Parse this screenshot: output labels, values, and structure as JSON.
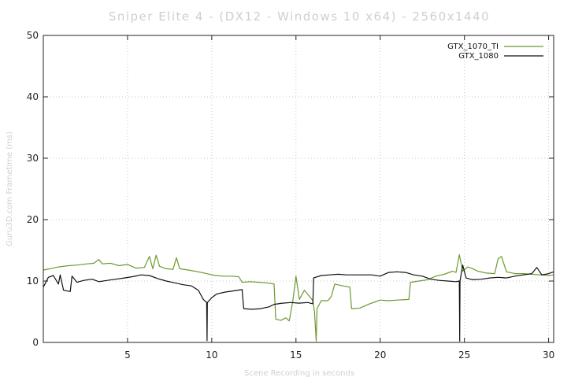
{
  "chart_data": {
    "type": "line",
    "title": "Sniper Elite 4 - (DX12 - Windows 10 x64) - 2560x1440",
    "xlabel": "Scene Recording in seconds",
    "ylabel": "Guru3D.com Frametime (ms)",
    "xlim": [
      0,
      30.3
    ],
    "ylim": [
      0,
      50
    ],
    "x_ticks": [
      5,
      10,
      15,
      20,
      25,
      30
    ],
    "y_ticks": [
      0,
      10,
      20,
      30,
      40,
      50
    ],
    "grid": true,
    "legend_position": "top-right",
    "series": [
      {
        "name": "GTX_1070_TI",
        "color": "#6b9a2e",
        "points": [
          [
            0,
            11.8
          ],
          [
            0.4,
            12.0
          ],
          [
            0.9,
            12.3
          ],
          [
            1.5,
            12.5
          ],
          [
            2.0,
            12.6
          ],
          [
            2.6,
            12.8
          ],
          [
            3.0,
            12.9
          ],
          [
            3.3,
            13.5
          ],
          [
            3.5,
            12.8
          ],
          [
            4.0,
            12.9
          ],
          [
            4.5,
            12.5
          ],
          [
            5.0,
            12.7
          ],
          [
            5.5,
            12.1
          ],
          [
            6.0,
            12.2
          ],
          [
            6.3,
            14.0
          ],
          [
            6.5,
            12.0
          ],
          [
            6.7,
            14.2
          ],
          [
            6.9,
            12.4
          ],
          [
            7.3,
            12.0
          ],
          [
            7.7,
            11.9
          ],
          [
            7.9,
            13.8
          ],
          [
            8.1,
            12.0
          ],
          [
            8.6,
            11.8
          ],
          [
            9.2,
            11.5
          ],
          [
            9.7,
            11.2
          ],
          [
            10.2,
            10.9
          ],
          [
            10.7,
            10.8
          ],
          [
            11.2,
            10.8
          ],
          [
            11.6,
            10.7
          ],
          [
            11.8,
            9.8
          ],
          [
            12.3,
            9.9
          ],
          [
            12.8,
            9.8
          ],
          [
            13.3,
            9.7
          ],
          [
            13.7,
            9.5
          ],
          [
            13.8,
            3.8
          ],
          [
            14.1,
            3.6
          ],
          [
            14.4,
            4.0
          ],
          [
            14.6,
            3.5
          ],
          [
            14.8,
            6.5
          ],
          [
            15.0,
            10.8
          ],
          [
            15.2,
            7.0
          ],
          [
            15.5,
            8.5
          ],
          [
            15.8,
            7.5
          ],
          [
            16.0,
            6.8
          ],
          [
            16.1,
            5.0
          ],
          [
            16.2,
            0.2
          ],
          [
            16.25,
            5.5
          ],
          [
            16.5,
            6.8
          ],
          [
            16.9,
            6.8
          ],
          [
            17.1,
            7.5
          ],
          [
            17.3,
            9.5
          ],
          [
            17.8,
            9.2
          ],
          [
            18.2,
            9.0
          ],
          [
            18.3,
            5.5
          ],
          [
            18.8,
            5.6
          ],
          [
            19.3,
            6.2
          ],
          [
            19.7,
            6.6
          ],
          [
            20.0,
            6.9
          ],
          [
            20.5,
            6.8
          ],
          [
            21.0,
            6.9
          ],
          [
            21.7,
            7.0
          ],
          [
            21.8,
            9.8
          ],
          [
            22.3,
            10.0
          ],
          [
            22.8,
            10.2
          ],
          [
            23.3,
            10.8
          ],
          [
            23.8,
            11.1
          ],
          [
            24.3,
            11.6
          ],
          [
            24.5,
            11.4
          ],
          [
            24.7,
            14.3
          ],
          [
            24.9,
            11.6
          ],
          [
            25.2,
            12.3
          ],
          [
            25.5,
            12.0
          ],
          [
            25.8,
            11.6
          ],
          [
            26.3,
            11.3
          ],
          [
            26.8,
            11.2
          ],
          [
            27.0,
            13.6
          ],
          [
            27.2,
            14.0
          ],
          [
            27.5,
            11.5
          ],
          [
            28.0,
            11.2
          ],
          [
            28.5,
            11.2
          ],
          [
            29.0,
            11.1
          ],
          [
            29.5,
            11.0
          ],
          [
            30.0,
            10.9
          ],
          [
            30.3,
            11.0
          ]
        ]
      },
      {
        "name": "GTX_1080",
        "color": "#111111",
        "points": [
          [
            0,
            9.0
          ],
          [
            0.3,
            10.6
          ],
          [
            0.6,
            10.9
          ],
          [
            0.9,
            9.5
          ],
          [
            1.0,
            11.0
          ],
          [
            1.2,
            8.5
          ],
          [
            1.6,
            8.3
          ],
          [
            1.7,
            10.8
          ],
          [
            2.0,
            9.8
          ],
          [
            2.4,
            10.1
          ],
          [
            2.9,
            10.3
          ],
          [
            3.3,
            9.9
          ],
          [
            3.8,
            10.1
          ],
          [
            4.3,
            10.3
          ],
          [
            4.8,
            10.5
          ],
          [
            5.3,
            10.7
          ],
          [
            5.8,
            11.0
          ],
          [
            6.3,
            10.9
          ],
          [
            6.8,
            10.4
          ],
          [
            7.3,
            10.0
          ],
          [
            7.8,
            9.7
          ],
          [
            8.3,
            9.4
          ],
          [
            8.8,
            9.2
          ],
          [
            9.2,
            8.5
          ],
          [
            9.5,
            7.0
          ],
          [
            9.7,
            6.5
          ],
          [
            9.72,
            0.3
          ],
          [
            9.74,
            6.5
          ],
          [
            10.0,
            7.3
          ],
          [
            10.3,
            7.9
          ],
          [
            10.8,
            8.2
          ],
          [
            11.3,
            8.4
          ],
          [
            11.8,
            8.6
          ],
          [
            11.9,
            5.5
          ],
          [
            12.4,
            5.4
          ],
          [
            12.9,
            5.5
          ],
          [
            13.4,
            5.8
          ],
          [
            13.7,
            6.2
          ],
          [
            14.2,
            6.4
          ],
          [
            14.7,
            6.5
          ],
          [
            15.2,
            6.4
          ],
          [
            15.7,
            6.5
          ],
          [
            16.0,
            6.3
          ],
          [
            16.05,
            10.5
          ],
          [
            16.5,
            10.9
          ],
          [
            17.0,
            11.0
          ],
          [
            17.5,
            11.1
          ],
          [
            18.0,
            11.0
          ],
          [
            18.5,
            11.0
          ],
          [
            19.0,
            11.0
          ],
          [
            19.5,
            11.0
          ],
          [
            20.0,
            10.8
          ],
          [
            20.5,
            11.4
          ],
          [
            21.0,
            11.5
          ],
          [
            21.5,
            11.4
          ],
          [
            22.0,
            11.0
          ],
          [
            22.5,
            10.8
          ],
          [
            23.0,
            10.3
          ],
          [
            23.5,
            10.1
          ],
          [
            24.0,
            10.0
          ],
          [
            24.5,
            9.9
          ],
          [
            24.7,
            10.0
          ],
          [
            24.72,
            0.2
          ],
          [
            24.74,
            10.0
          ],
          [
            24.9,
            12.6
          ],
          [
            25.1,
            10.5
          ],
          [
            25.5,
            10.2
          ],
          [
            26.0,
            10.3
          ],
          [
            26.5,
            10.5
          ],
          [
            27.0,
            10.6
          ],
          [
            27.5,
            10.5
          ],
          [
            28.0,
            10.8
          ],
          [
            28.5,
            11.0
          ],
          [
            29.0,
            11.2
          ],
          [
            29.3,
            12.2
          ],
          [
            29.6,
            11.0
          ],
          [
            30.0,
            11.2
          ],
          [
            30.3,
            11.5
          ]
        ]
      }
    ]
  }
}
